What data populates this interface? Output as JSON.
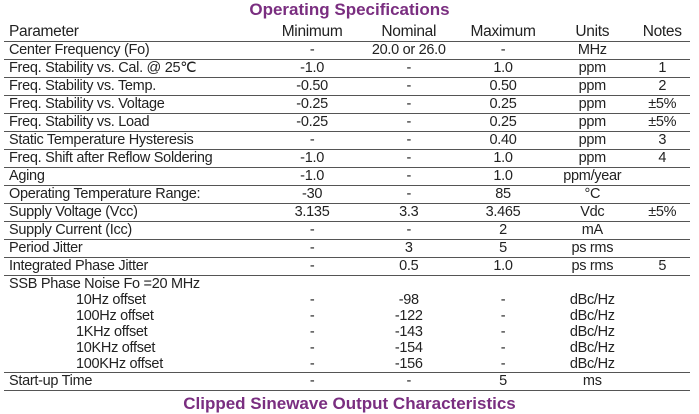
{
  "title": "Operating Specifications",
  "next_title": "Clipped Sinewave Output Characteristics",
  "headers": [
    "Parameter",
    "Minimum",
    "Nominal",
    "Maximum",
    "Units",
    "Notes"
  ],
  "rows": [
    [
      "Center Frequency (Fo)",
      "-",
      "20.0 or 26.0",
      "-",
      "MHz",
      ""
    ],
    [
      "Freq. Stability vs. Cal. @ 25℃",
      "-1.0",
      "-",
      "1.0",
      "ppm",
      "1"
    ],
    [
      "Freq. Stability vs. Temp.",
      "-0.50",
      "-",
      "0.50",
      "ppm",
      "2"
    ],
    [
      "Freq. Stability vs. Voltage",
      "-0.25",
      "-",
      "0.25",
      "ppm",
      "±5%"
    ],
    [
      "Freq. Stability vs. Load",
      "-0.25",
      "-",
      "0.25",
      "ppm",
      "±5%"
    ],
    [
      "Static Temperature Hysteresis",
      "-",
      "-",
      "0.40",
      "ppm",
      "3"
    ],
    [
      "Freq. Shift after Reflow Soldering",
      "-1.0",
      "-",
      "1.0",
      "ppm",
      "4"
    ],
    [
      "Aging",
      "-1.0",
      "-",
      "1.0",
      "ppm/year",
      ""
    ],
    [
      "Operating Temperature Range:",
      "-30",
      "-",
      "85",
      "°C",
      ""
    ],
    [
      "Supply Voltage (Vcc)",
      "3.135",
      "3.3",
      "3.465",
      "Vdc",
      "±5%"
    ],
    [
      "Supply Current (Icc)",
      "-",
      "-",
      "2",
      "mA",
      ""
    ],
    [
      "Period Jitter",
      "-",
      "3",
      "5",
      "ps rms",
      ""
    ],
    [
      "Integrated Phase Jitter",
      "-",
      "0.5",
      "1.0",
      "ps rms",
      "5"
    ]
  ],
  "ssb": {
    "label": "SSB Phase Noise Fo =20 MHz",
    "rows": [
      [
        "10Hz offset",
        "-",
        "-98",
        "-",
        "dBc/Hz",
        ""
      ],
      [
        "100Hz offset",
        "-",
        "-122",
        "-",
        "dBc/Hz",
        ""
      ],
      [
        "1KHz offset",
        "-",
        "-143",
        "-",
        "dBc/Hz",
        ""
      ],
      [
        "10KHz offset",
        "-",
        "-154",
        "-",
        "dBc/Hz",
        ""
      ],
      [
        "100KHz offset",
        "-",
        "-156",
        "-",
        "dBc/Hz",
        ""
      ]
    ]
  },
  "startup": [
    "Start-up Time",
    "-",
    "-",
    "5",
    "ms",
    ""
  ]
}
